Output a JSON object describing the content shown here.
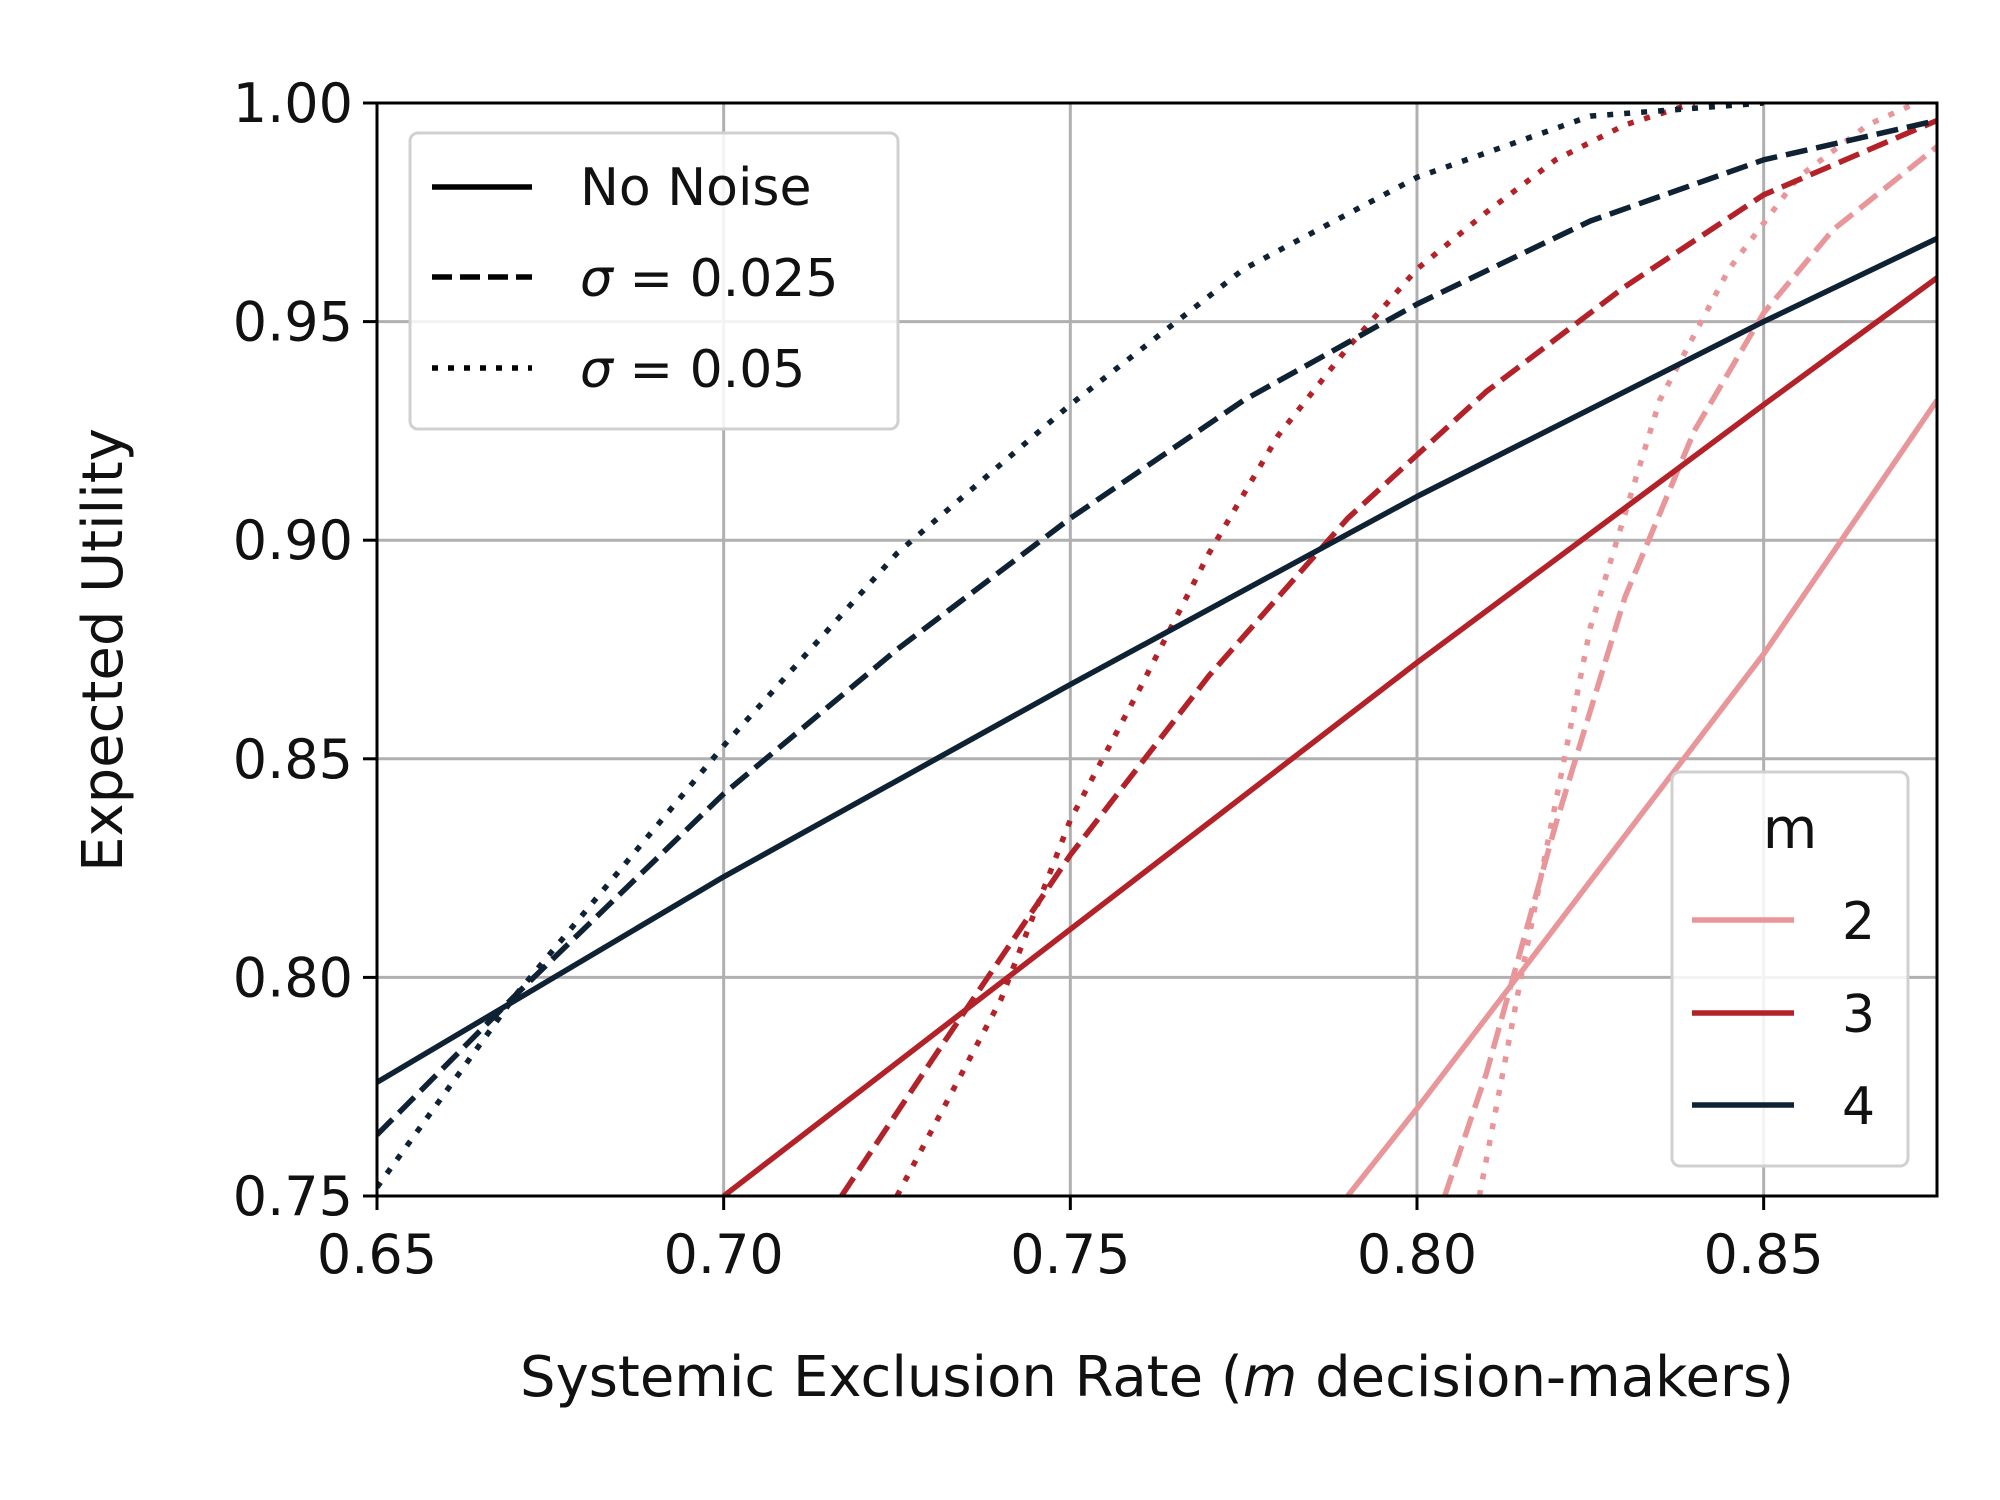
{
  "chart_data": {
    "type": "line",
    "xlabel": "Systemic Exclusion Rate (m decision-makers)",
    "xlabel_parts": {
      "before": "Systemic Exclusion Rate (",
      "italic": "m",
      "after": " decision-makers)"
    },
    "ylabel": "Expected Utility",
    "xlim": [
      0.65,
      0.875
    ],
    "ylim": [
      0.75,
      1.0
    ],
    "x_ticks": [
      0.65,
      0.7,
      0.75,
      0.8,
      0.85
    ],
    "x_tick_labels": [
      "0.65",
      "0.70",
      "0.75",
      "0.80",
      "0.85"
    ],
    "y_ticks": [
      0.75,
      0.8,
      0.85,
      0.9,
      0.95,
      1.0
    ],
    "y_tick_labels": [
      "0.75",
      "0.80",
      "0.85",
      "0.90",
      "0.95",
      "1.00"
    ],
    "grid": true,
    "colors": {
      "m2": "#e8969a",
      "m3": "#b22228",
      "m4": "#0f2233"
    },
    "style_legend": {
      "placement": "top-left",
      "entries": [
        {
          "label": "No Noise",
          "style": "solid"
        },
        {
          "label": "σ = 0.025",
          "style": "dashed",
          "sym": "σ",
          "rest": " = 0.025"
        },
        {
          "label": "σ = 0.05",
          "style": "dotted",
          "sym": "σ",
          "rest": " = 0.05"
        }
      ]
    },
    "m_legend": {
      "placement": "bottom-right",
      "title": "m",
      "entries": [
        {
          "label": "2",
          "color": "#e8969a"
        },
        {
          "label": "3",
          "color": "#b22228"
        },
        {
          "label": "4",
          "color": "#0f2233"
        }
      ]
    },
    "series": [
      {
        "m": "2",
        "style": "solid",
        "color": "#e8969a",
        "x": [
          0.79,
          0.8,
          0.813,
          0.825,
          0.85,
          0.875
        ],
        "y": [
          0.75,
          0.77,
          0.797,
          0.822,
          0.874,
          0.932
        ]
      },
      {
        "m": "2",
        "style": "dashed",
        "color": "#e8969a",
        "x": [
          0.804,
          0.81,
          0.82,
          0.83,
          0.84,
          0.85,
          0.86,
          0.875
        ],
        "y": [
          0.75,
          0.778,
          0.835,
          0.887,
          0.925,
          0.952,
          0.971,
          0.99
        ]
      },
      {
        "m": "2",
        "style": "dotted",
        "color": "#e8969a",
        "x": [
          0.809,
          0.815,
          0.825,
          0.835,
          0.845,
          0.855,
          0.865,
          0.872
        ],
        "y": [
          0.75,
          0.8,
          0.88,
          0.932,
          0.962,
          0.983,
          0.995,
          1.0
        ]
      },
      {
        "m": "3",
        "style": "solid",
        "color": "#b22228",
        "x": [
          0.7,
          0.75,
          0.8,
          0.85,
          0.875
        ],
        "y": [
          0.75,
          0.811,
          0.872,
          0.931,
          0.96
        ]
      },
      {
        "m": "3",
        "style": "dashed",
        "color": "#b22228",
        "x": [
          0.717,
          0.73,
          0.75,
          0.77,
          0.79,
          0.81,
          0.83,
          0.85,
          0.875
        ],
        "y": [
          0.75,
          0.781,
          0.828,
          0.869,
          0.905,
          0.934,
          0.958,
          0.979,
          0.996
        ]
      },
      {
        "m": "3",
        "style": "dotted",
        "color": "#b22228",
        "x": [
          0.725,
          0.74,
          0.75,
          0.76,
          0.77,
          0.78,
          0.79,
          0.8,
          0.81,
          0.82,
          0.83,
          0.84
        ],
        "y": [
          0.75,
          0.795,
          0.836,
          0.866,
          0.897,
          0.924,
          0.944,
          0.962,
          0.975,
          0.987,
          0.995,
          1.0
        ]
      },
      {
        "m": "4",
        "style": "solid",
        "color": "#0f2233",
        "x": [
          0.65,
          0.7,
          0.75,
          0.8,
          0.85,
          0.875
        ],
        "y": [
          0.776,
          0.823,
          0.867,
          0.91,
          0.95,
          0.969
        ]
      },
      {
        "m": "4",
        "style": "dashed",
        "color": "#0f2233",
        "x": [
          0.65,
          0.67,
          0.7,
          0.725,
          0.75,
          0.775,
          0.8,
          0.825,
          0.85,
          0.875
        ],
        "y": [
          0.764,
          0.796,
          0.842,
          0.875,
          0.905,
          0.932,
          0.954,
          0.973,
          0.987,
          0.996
        ]
      },
      {
        "m": "4",
        "style": "dotted",
        "color": "#0f2233",
        "x": [
          0.65,
          0.67,
          0.7,
          0.725,
          0.75,
          0.775,
          0.8,
          0.825,
          0.85
        ],
        "y": [
          0.752,
          0.796,
          0.853,
          0.897,
          0.931,
          0.962,
          0.983,
          0.997,
          1.0
        ]
      }
    ]
  }
}
